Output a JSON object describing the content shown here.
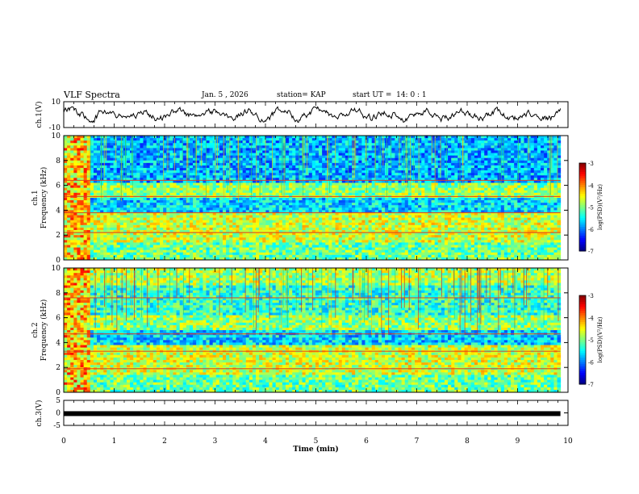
{
  "header": {
    "title": "VLF Spectra",
    "date": "Jan. 5 , 2026",
    "station": "station= KAP",
    "start_ut": "start UT =  14: 0 : 1"
  },
  "chart_data": [
    {
      "type": "line",
      "name": "ch1-waveform",
      "ylabel": "ch.1(V)",
      "ylim": [
        -10,
        10
      ],
      "yticks": [
        "10",
        "-10"
      ],
      "xlim": [
        0,
        10
      ],
      "description_values": {
        "min": -5,
        "max": 5
      }
    },
    {
      "type": "heatmap",
      "name": "ch1-spectrogram",
      "ylabel": "ch.1\nFrequency (kHz)",
      "ylabel_lines": [
        "ch.1",
        "Frequency (kHz)"
      ],
      "ylim": [
        0,
        10
      ],
      "yticks": [
        "0",
        "2",
        "4",
        "6",
        "8",
        "10"
      ],
      "xlim": [
        0,
        9.85
      ],
      "colorbar": {
        "label": "log(PSD)(V²/Hz)",
        "range": [
          -7,
          -3
        ],
        "ticks": [
          "-3",
          "-4",
          "-5",
          "-6",
          "-7"
        ]
      }
    },
    {
      "type": "heatmap",
      "name": "ch2-spectrogram",
      "ylabel_lines": [
        "ch.2",
        "Frequency (kHz)"
      ],
      "ylim": [
        0,
        10
      ],
      "yticks": [
        "0",
        "2",
        "4",
        "6",
        "8",
        "10"
      ],
      "xlim": [
        0,
        9.85
      ],
      "colorbar": {
        "label": "log(PSD)(V²/Hz)",
        "range": [
          -7,
          -3
        ],
        "ticks": [
          "-3",
          "-4",
          "-5",
          "-6",
          "-7"
        ]
      }
    },
    {
      "type": "line",
      "name": "ch3-trace",
      "ylabel": "ch.3(V)",
      "ylim": [
        -5,
        5
      ],
      "yticks": [
        "5",
        "0",
        "-5"
      ],
      "level": -0.3,
      "xlim": [
        0,
        10
      ]
    }
  ],
  "xaxis": {
    "label": "Time (min)",
    "ticks": [
      "0",
      "1",
      "2",
      "3",
      "4",
      "5",
      "6",
      "7",
      "8",
      "9",
      "10"
    ]
  },
  "colors": {
    "axis": "#000000",
    "background": "#ffffff"
  }
}
